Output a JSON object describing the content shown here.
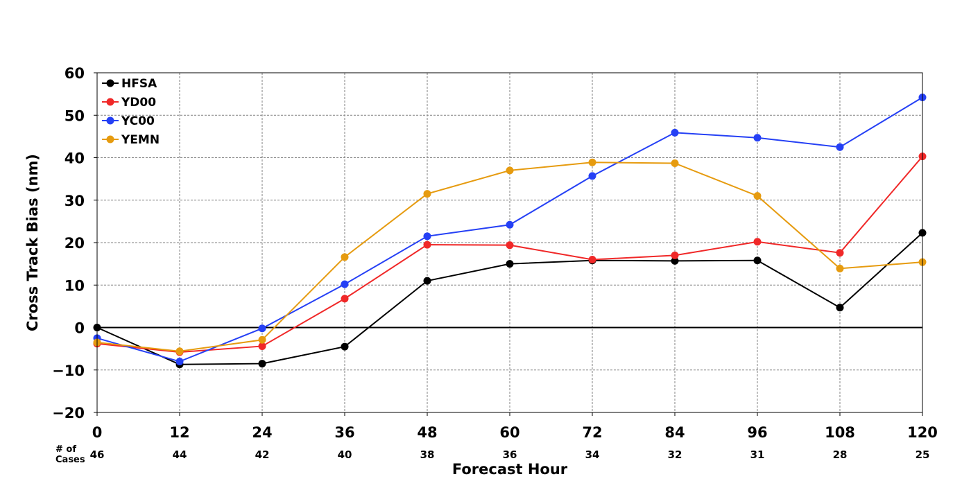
{
  "chart_data": {
    "type": "line",
    "title": "",
    "xlabel": "Forecast Hour",
    "ylabel": "Cross Track Bias (nm)",
    "x": [
      0,
      12,
      24,
      36,
      48,
      60,
      72,
      84,
      96,
      108,
      120
    ],
    "x_tick_labels": [
      "0",
      "12",
      "24",
      "36",
      "48",
      "60",
      "72",
      "84",
      "96",
      "108",
      "120"
    ],
    "xlim": [
      0,
      120
    ],
    "ylim": [
      -20,
      60
    ],
    "y_ticks": [
      -20,
      -10,
      0,
      10,
      20,
      30,
      40,
      50,
      60
    ],
    "y_tick_labels": [
      "−20",
      "−10",
      "0",
      "10",
      "20",
      "30",
      "40",
      "50",
      "60"
    ],
    "grid": true,
    "grid_style": "dashed",
    "zero_line": true,
    "legend_position": "top-left",
    "series": [
      {
        "name": "HFSA",
        "color": "#000000",
        "values": [
          0.0,
          -8.7,
          -8.5,
          -4.5,
          11.0,
          15.0,
          15.8,
          15.7,
          15.8,
          4.7,
          22.3
        ]
      },
      {
        "name": "YD00",
        "color": "#f02828",
        "values": [
          -3.8,
          -5.8,
          -4.4,
          6.8,
          19.5,
          19.4,
          16.0,
          17.0,
          20.2,
          17.6,
          40.3
        ]
      },
      {
        "name": "YC00",
        "color": "#2540f5",
        "values": [
          -2.5,
          -8.0,
          -0.2,
          10.2,
          21.5,
          24.2,
          35.7,
          45.9,
          44.7,
          42.5,
          54.2
        ]
      },
      {
        "name": "YEMN",
        "color": "#e69b0f",
        "values": [
          -3.5,
          -5.6,
          -2.9,
          16.6,
          31.5,
          37.0,
          38.9,
          38.7,
          31.0,
          13.9,
          15.4
        ]
      }
    ],
    "cases_title": "# of\nCases",
    "cases": [
      "46",
      "44",
      "42",
      "40",
      "38",
      "36",
      "34",
      "32",
      "31",
      "28",
      "25"
    ]
  }
}
